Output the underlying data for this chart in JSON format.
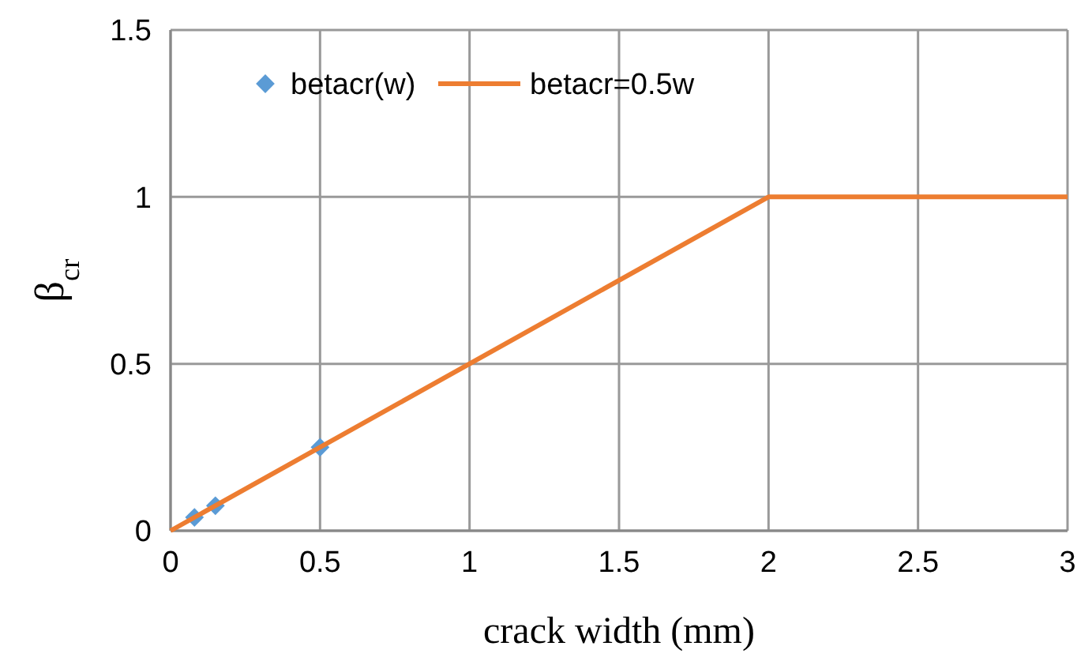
{
  "chart_data": {
    "type": "line",
    "xlabel": "crack width (mm)",
    "ylabel": "β$_{cr}$",
    "xlim": [
      0,
      3
    ],
    "ylim": [
      0,
      1.5
    ],
    "xticks": [
      0,
      0.5,
      1,
      1.5,
      2,
      2.5,
      3
    ],
    "yticks": [
      0,
      0.5,
      1,
      1.5
    ],
    "grid": true,
    "legend": "top left",
    "series": [
      {
        "name": "betacr(w)",
        "type": "scatter",
        "marker": "diamond",
        "color": "#5b9bd5",
        "x": [
          0.08,
          0.15,
          0.5
        ],
        "values": [
          0.04,
          0.075,
          0.25
        ]
      },
      {
        "name": "betacr=0.5w",
        "marker": "none",
        "color": "#ed7d31",
        "x": [
          0,
          2,
          3
        ],
        "values": [
          0,
          1,
          1
        ]
      }
    ]
  }
}
